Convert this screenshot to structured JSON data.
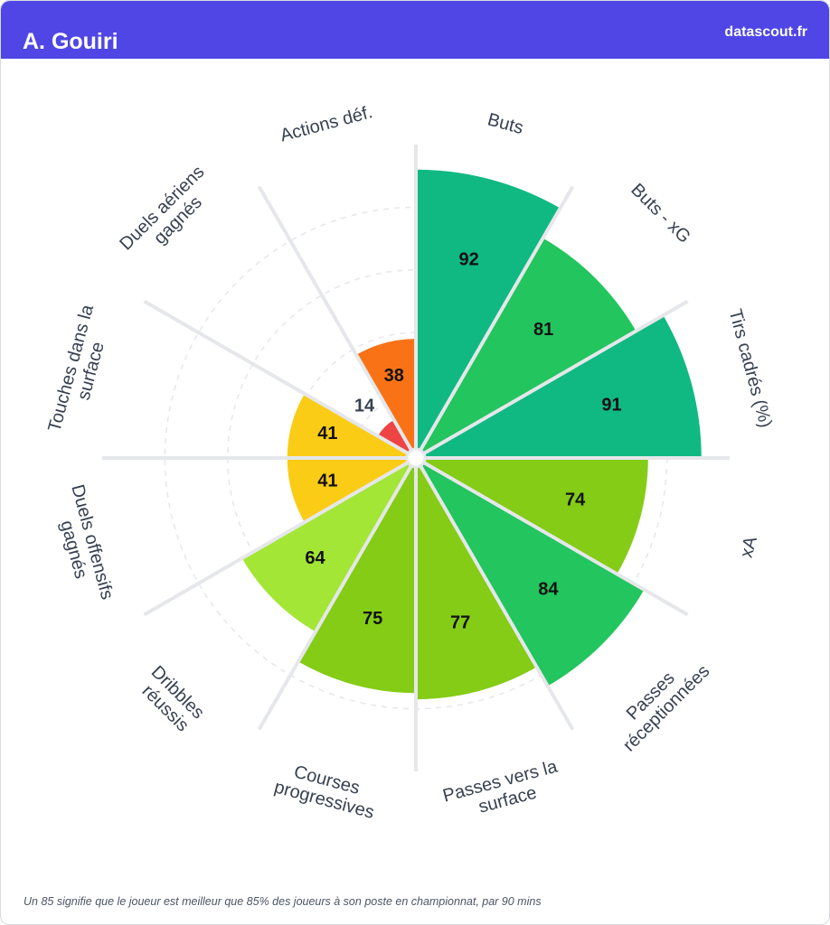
{
  "chart_data": {
    "type": "polar_bar",
    "title": "A. Gouiri",
    "source": "datascout.fr",
    "note": "Un 85 signifie que le joueur est meilleur que 85% des joueurs à son poste en championnat, par 90 mins",
    "categories": [
      "Buts",
      "Buts - xG",
      "Tirs cadrés (%)",
      "xA",
      "Passes réceptionnées",
      "Passes vers la surface",
      "Courses progressives",
      "Dribbles réussis",
      "Duels offensifs gagnés",
      "Touches dans la surface",
      "Duels aériens gagnés",
      "Actions déf."
    ],
    "values": [
      92,
      81,
      91,
      74,
      84,
      77,
      75,
      64,
      41,
      41,
      14,
      38
    ],
    "colors": [
      "#10b981",
      "#22c55e",
      "#10b981",
      "#84cc16",
      "#22c55e",
      "#84cc16",
      "#84cc16",
      "#a3e635",
      "#facc15",
      "#facc15",
      "#ef4444",
      "#f97316"
    ],
    "rlim": [
      0,
      100
    ],
    "rticks": [
      20,
      40,
      60,
      80
    ]
  }
}
